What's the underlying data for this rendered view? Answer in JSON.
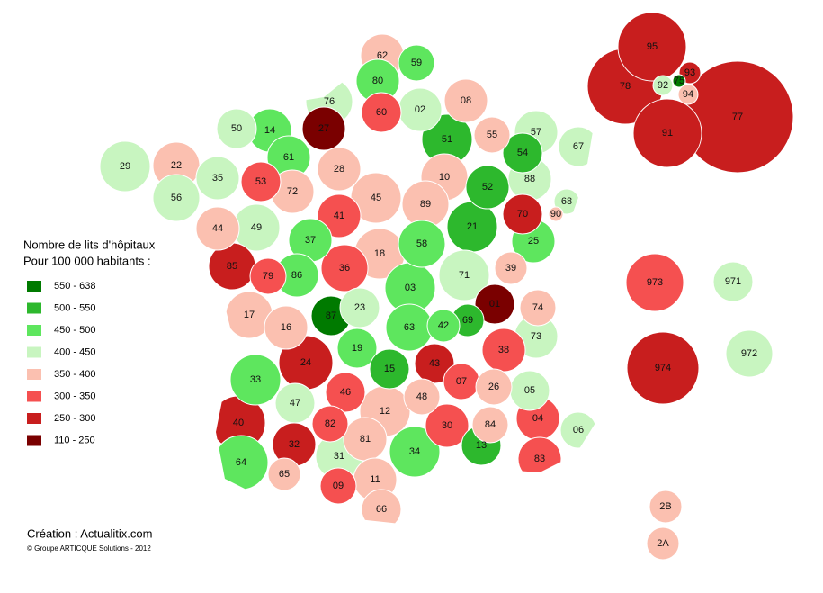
{
  "map": {
    "legend": {
      "title_lines": [
        "Nombre de lits d'hôpitaux",
        "Pour 100 000 habitants :"
      ],
      "classes": [
        {
          "label": "550 - 638",
          "color": "#007a00"
        },
        {
          "label": "500 - 550",
          "color": "#2db82d"
        },
        {
          "label": "450 - 500",
          "color": "#5ee65e"
        },
        {
          "label": "400 - 450",
          "color": "#c8f5c0"
        },
        {
          "label": "350 - 400",
          "color": "#fbc0b0"
        },
        {
          "label": "300 - 350",
          "color": "#f55050"
        },
        {
          "label": "250 - 300",
          "color": "#c81e1e"
        },
        {
          "label": "110 - 250",
          "color": "#7a0000"
        }
      ]
    },
    "departments": [
      {
        "code": "62",
        "color": "#fbc0b0"
      },
      {
        "code": "59",
        "color": "#5ee65e"
      },
      {
        "code": "80",
        "color": "#5ee65e"
      },
      {
        "code": "76",
        "color": "#c8f5c0"
      },
      {
        "code": "60",
        "color": "#f55050"
      },
      {
        "code": "02",
        "color": "#c8f5c0"
      },
      {
        "code": "08",
        "color": "#fbc0b0"
      },
      {
        "code": "50",
        "color": "#c8f5c0"
      },
      {
        "code": "14",
        "color": "#5ee65e"
      },
      {
        "code": "27",
        "color": "#7a0000"
      },
      {
        "code": "51",
        "color": "#2db82d"
      },
      {
        "code": "55",
        "color": "#fbc0b0"
      },
      {
        "code": "57",
        "color": "#c8f5c0"
      },
      {
        "code": "67",
        "color": "#c8f5c0"
      },
      {
        "code": "54",
        "color": "#2db82d"
      },
      {
        "code": "29",
        "color": "#c8f5c0"
      },
      {
        "code": "22",
        "color": "#fbc0b0"
      },
      {
        "code": "35",
        "color": "#c8f5c0"
      },
      {
        "code": "61",
        "color": "#5ee65e"
      },
      {
        "code": "28",
        "color": "#fbc0b0"
      },
      {
        "code": "10",
        "color": "#fbc0b0"
      },
      {
        "code": "52",
        "color": "#2db82d"
      },
      {
        "code": "88",
        "color": "#c8f5c0"
      },
      {
        "code": "56",
        "color": "#c8f5c0"
      },
      {
        "code": "53",
        "color": "#f55050"
      },
      {
        "code": "72",
        "color": "#fbc0b0"
      },
      {
        "code": "45",
        "color": "#fbc0b0"
      },
      {
        "code": "89",
        "color": "#fbc0b0"
      },
      {
        "code": "68",
        "color": "#c8f5c0"
      },
      {
        "code": "70",
        "color": "#c81e1e"
      },
      {
        "code": "90",
        "color": "#fbc0b0"
      },
      {
        "code": "44",
        "color": "#fbc0b0"
      },
      {
        "code": "49",
        "color": "#c8f5c0"
      },
      {
        "code": "41",
        "color": "#f55050"
      },
      {
        "code": "37",
        "color": "#5ee65e"
      },
      {
        "code": "18",
        "color": "#fbc0b0"
      },
      {
        "code": "58",
        "color": "#5ee65e"
      },
      {
        "code": "21",
        "color": "#2db82d"
      },
      {
        "code": "25",
        "color": "#5ee65e"
      },
      {
        "code": "85",
        "color": "#c81e1e"
      },
      {
        "code": "79",
        "color": "#f55050"
      },
      {
        "code": "86",
        "color": "#5ee65e"
      },
      {
        "code": "36",
        "color": "#f55050"
      },
      {
        "code": "71",
        "color": "#c8f5c0"
      },
      {
        "code": "39",
        "color": "#fbc0b0"
      },
      {
        "code": "17",
        "color": "#fbc0b0"
      },
      {
        "code": "16",
        "color": "#fbc0b0"
      },
      {
        "code": "87",
        "color": "#007a00"
      },
      {
        "code": "23",
        "color": "#c8f5c0"
      },
      {
        "code": "03",
        "color": "#5ee65e"
      },
      {
        "code": "01",
        "color": "#7a0000"
      },
      {
        "code": "74",
        "color": "#fbc0b0"
      },
      {
        "code": "69",
        "color": "#2db82d"
      },
      {
        "code": "63",
        "color": "#5ee65e"
      },
      {
        "code": "42",
        "color": "#5ee65e"
      },
      {
        "code": "73",
        "color": "#c8f5c0"
      },
      {
        "code": "19",
        "color": "#5ee65e"
      },
      {
        "code": "24",
        "color": "#c81e1e"
      },
      {
        "code": "15",
        "color": "#2db82d"
      },
      {
        "code": "43",
        "color": "#c81e1e"
      },
      {
        "code": "38",
        "color": "#f55050"
      },
      {
        "code": "33",
        "color": "#5ee65e"
      },
      {
        "code": "46",
        "color": "#f55050"
      },
      {
        "code": "48",
        "color": "#fbc0b0"
      },
      {
        "code": "07",
        "color": "#f55050"
      },
      {
        "code": "26",
        "color": "#fbc0b0"
      },
      {
        "code": "05",
        "color": "#c8f5c0"
      },
      {
        "code": "47",
        "color": "#c8f5c0"
      },
      {
        "code": "12",
        "color": "#fbc0b0"
      },
      {
        "code": "04",
        "color": "#f55050"
      },
      {
        "code": "06",
        "color": "#c8f5c0"
      },
      {
        "code": "40",
        "color": "#c81e1e"
      },
      {
        "code": "82",
        "color": "#f55050"
      },
      {
        "code": "30",
        "color": "#f55050"
      },
      {
        "code": "84",
        "color": "#fbc0b0"
      },
      {
        "code": "81",
        "color": "#fbc0b0"
      },
      {
        "code": "32",
        "color": "#c81e1e"
      },
      {
        "code": "34",
        "color": "#5ee65e"
      },
      {
        "code": "13",
        "color": "#2db82d"
      },
      {
        "code": "83",
        "color": "#f55050"
      },
      {
        "code": "64",
        "color": "#5ee65e"
      },
      {
        "code": "31",
        "color": "#c8f5c0"
      },
      {
        "code": "65",
        "color": "#fbc0b0"
      },
      {
        "code": "11",
        "color": "#fbc0b0"
      },
      {
        "code": "09",
        "color": "#f55050"
      },
      {
        "code": "66",
        "color": "#fbc0b0"
      },
      {
        "code": "2B",
        "color": "#fbc0b0"
      },
      {
        "code": "2A",
        "color": "#fbc0b0"
      },
      {
        "code": "78",
        "color": "#c81e1e"
      },
      {
        "code": "95",
        "color": "#c81e1e"
      },
      {
        "code": "91",
        "color": "#c81e1e"
      },
      {
        "code": "77",
        "color": "#c81e1e"
      },
      {
        "code": "93",
        "color": "#c81e1e"
      },
      {
        "code": "92",
        "color": "#c8f5c0"
      },
      {
        "code": "94",
        "color": "#fbc0b0"
      },
      {
        "code": "75",
        "color": "#007a00"
      },
      {
        "code": "973",
        "color": "#f55050"
      },
      {
        "code": "971",
        "color": "#c8f5c0"
      },
      {
        "code": "974",
        "color": "#c81e1e"
      },
      {
        "code": "972",
        "color": "#c8f5c0"
      }
    ],
    "credit": "Création : Actualitix.com",
    "copyright": "© Groupe ARTICQUE Solutions - 2012"
  }
}
